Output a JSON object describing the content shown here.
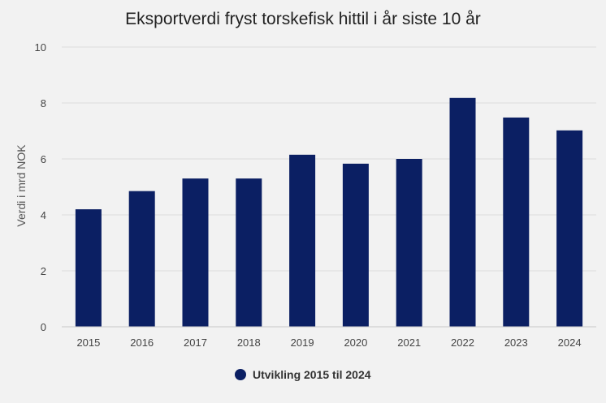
{
  "chart_data": {
    "type": "bar",
    "title": "Eksportverdi fryst torskefisk hittil i år siste 10 år",
    "xlabel": "",
    "ylabel": "Verdi i mrd NOK",
    "categories": [
      "2015",
      "2016",
      "2017",
      "2018",
      "2019",
      "2020",
      "2021",
      "2022",
      "2023",
      "2024"
    ],
    "series": [
      {
        "name": "Utvikling 2015 til 2024",
        "values": [
          4.2,
          4.85,
          5.3,
          5.3,
          6.15,
          5.83,
          6.0,
          8.18,
          7.48,
          7.02
        ],
        "color": "#0b1f63"
      }
    ],
    "ylim": [
      0,
      10
    ],
    "yticks": [
      0,
      2,
      4,
      6,
      8,
      10
    ],
    "grid": true,
    "legend_position": "bottom-center"
  }
}
